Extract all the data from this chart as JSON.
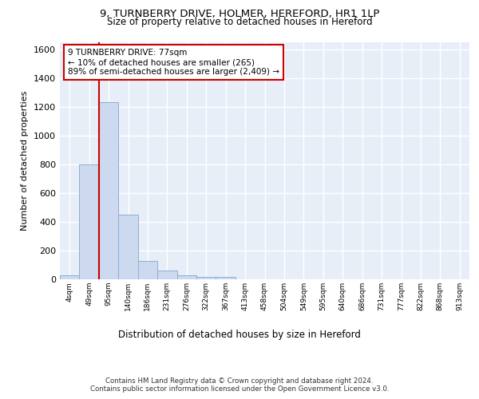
{
  "title_line1": "9, TURNBERRY DRIVE, HOLMER, HEREFORD, HR1 1LP",
  "title_line2": "Size of property relative to detached houses in Hereford",
  "xlabel": "Distribution of detached houses by size in Hereford",
  "ylabel": "Number of detached properties",
  "bin_labels": [
    "4sqm",
    "49sqm",
    "95sqm",
    "140sqm",
    "186sqm",
    "231sqm",
    "276sqm",
    "322sqm",
    "367sqm",
    "413sqm",
    "458sqm",
    "504sqm",
    "549sqm",
    "595sqm",
    "640sqm",
    "686sqm",
    "731sqm",
    "777sqm",
    "822sqm",
    "868sqm",
    "913sqm"
  ],
  "bar_heights": [
    30,
    800,
    1230,
    450,
    130,
    60,
    28,
    18,
    15,
    0,
    0,
    0,
    0,
    0,
    0,
    0,
    0,
    0,
    0,
    0,
    0
  ],
  "bar_color": "#ccd9ee",
  "bar_edge_color": "#8ab0d8",
  "vline_color": "#cc0000",
  "annotation_text": "9 TURNBERRY DRIVE: 77sqm\n← 10% of detached houses are smaller (265)\n89% of semi-detached houses are larger (2,409) →",
  "annotation_box_color": "#ffffff",
  "annotation_box_edge": "#cc0000",
  "ylim": [
    0,
    1650
  ],
  "yticks": [
    0,
    200,
    400,
    600,
    800,
    1000,
    1200,
    1400,
    1600
  ],
  "footer_line1": "Contains HM Land Registry data © Crown copyright and database right 2024.",
  "footer_line2": "Contains public sector information licensed under the Open Government Licence v3.0.",
  "plot_bg_color": "#e8eef8"
}
